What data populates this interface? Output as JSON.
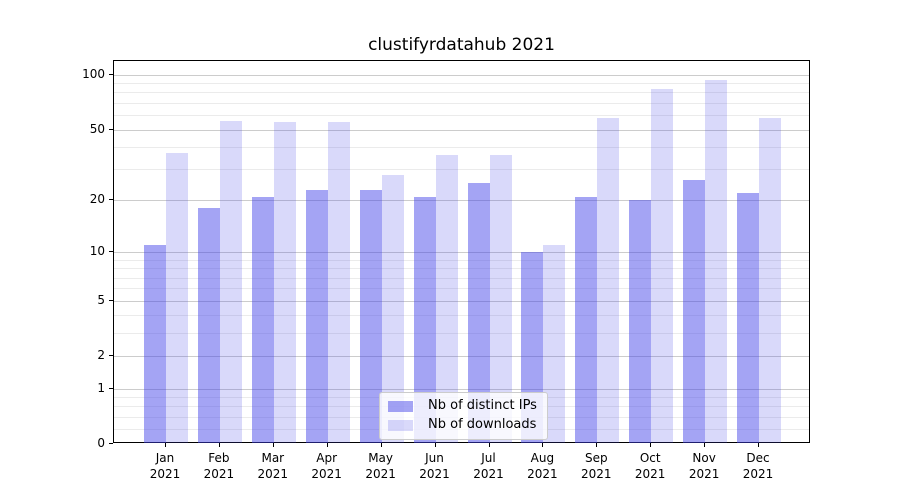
{
  "title": "clustifyrdatahub 2021",
  "chart_data": {
    "type": "bar",
    "title": "clustifyrdatahub 2021",
    "categories": [
      "Jan",
      "Feb",
      "Mar",
      "Apr",
      "May",
      "Jun",
      "Jul",
      "Aug",
      "Sep",
      "Oct",
      "Nov",
      "Dec"
    ],
    "x_year_label": "2021",
    "series": [
      {
        "name": "Nb of distinct IPs",
        "color": "rgba(64,64,232,0.48)",
        "values": [
          11,
          18,
          21,
          23,
          23,
          21,
          25,
          10,
          21,
          20,
          26,
          22
        ]
      },
      {
        "name": "Nb of downloads",
        "color": "rgba(64,64,232,0.20)",
        "values": [
          37,
          56,
          55,
          55,
          28,
          36,
          36,
          11,
          58,
          84,
          94,
          58
        ]
      }
    ],
    "yscale": "log1p",
    "ylim": [
      0,
      119
    ],
    "y_major_ticks": [
      0,
      1,
      2,
      5,
      10,
      20,
      50,
      100
    ],
    "y_minor_gridlines": [
      0.2,
      0.4,
      0.6,
      0.8,
      3,
      4,
      6,
      7,
      8,
      9,
      30,
      40,
      60,
      70,
      80,
      90
    ],
    "grid": true,
    "legend_position": "lower center",
    "colors": {
      "grid_major": "#cccccc",
      "grid_minor": "#ebebeb",
      "spine": "#000000",
      "text": "#000000",
      "legend_border": "#cccccc"
    }
  }
}
